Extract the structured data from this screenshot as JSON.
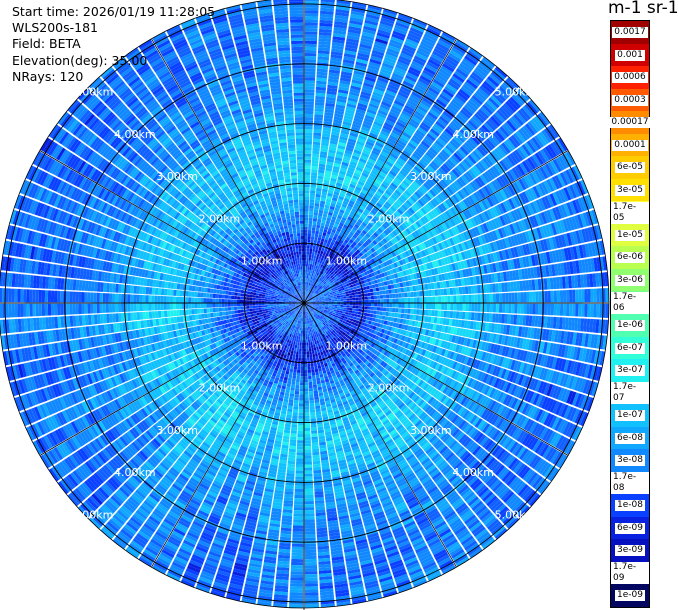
{
  "header": {
    "start_time": "Start time: 2026/01/19 11:28:05",
    "instrument": "WLS200s-181",
    "field": "Field: BETA",
    "elevation": "Elevation(deg): 35.00",
    "nrays": "NRays: 120"
  },
  "colorbar": {
    "unit_label": "m-1 sr-1",
    "levels": [
      "0.0017",
      "0.001",
      "0.0006",
      "0.0003",
      "0.00017",
      "0.0001",
      "6e-05",
      "3e-05",
      "1.7e-05",
      "1e-05",
      "6e-06",
      "3e-06",
      "1.7e-06",
      "1e-06",
      "6e-07",
      "3e-07",
      "1.7e-07",
      "1e-07",
      "6e-08",
      "3e-08",
      "1.7e-08",
      "1e-08",
      "6e-09",
      "3e-09",
      "1.7e-09",
      "1e-09"
    ],
    "colors": [
      "#a00000",
      "#d00000",
      "#ff2000",
      "#ff5a00",
      "#ff8c00",
      "#ffb000",
      "#ffcc00",
      "#ffe000",
      "#ffff40",
      "#e0ff40",
      "#b8ff50",
      "#90ff70",
      "#70ff90",
      "#50ffb0",
      "#30ffd8",
      "#20f0f0",
      "#18d8f8",
      "#10c0ff",
      "#10a8ff",
      "#1088ff",
      "#1060ff",
      "#0a40ff",
      "#0820e0",
      "#0510c0",
      "#030890",
      "#020660"
    ]
  },
  "chart_data": {
    "type": "heatmap",
    "projection": "polar (PPI)",
    "field": "BETA",
    "elevation_deg": 35.0,
    "n_rays": 120,
    "range_rings_km": [
      1,
      2,
      3,
      4,
      5
    ],
    "range_ring_labels": [
      "1.00km",
      "2.00km",
      "3.00km",
      "4.00km",
      "5.00km"
    ],
    "azimuth_spokes_deg": [
      0,
      30,
      60,
      90,
      120,
      150,
      180,
      210,
      240,
      270,
      300,
      330
    ],
    "max_range_km": 5.1,
    "value_scale": "log",
    "value_range": [
      1e-09,
      0.0017
    ],
    "radial_profile": [
      {
        "range_km": 0.5,
        "beta": 2.5e-08
      },
      {
        "range_km": 0.9,
        "beta": 6e-09
      },
      {
        "range_km": 1.3,
        "beta": 3e-08
      },
      {
        "range_km": 1.8,
        "beta": 1e-07
      },
      {
        "range_km": 2.2,
        "beta": 1.7e-07
      },
      {
        "range_km": 2.7,
        "beta": 1.2e-07
      },
      {
        "range_km": 3.2,
        "beta": 6e-08
      },
      {
        "range_km": 3.8,
        "beta": 4e-08
      },
      {
        "range_km": 4.5,
        "beta": 3e-08
      },
      {
        "range_km": 5.0,
        "beta": 3e-08
      }
    ]
  }
}
